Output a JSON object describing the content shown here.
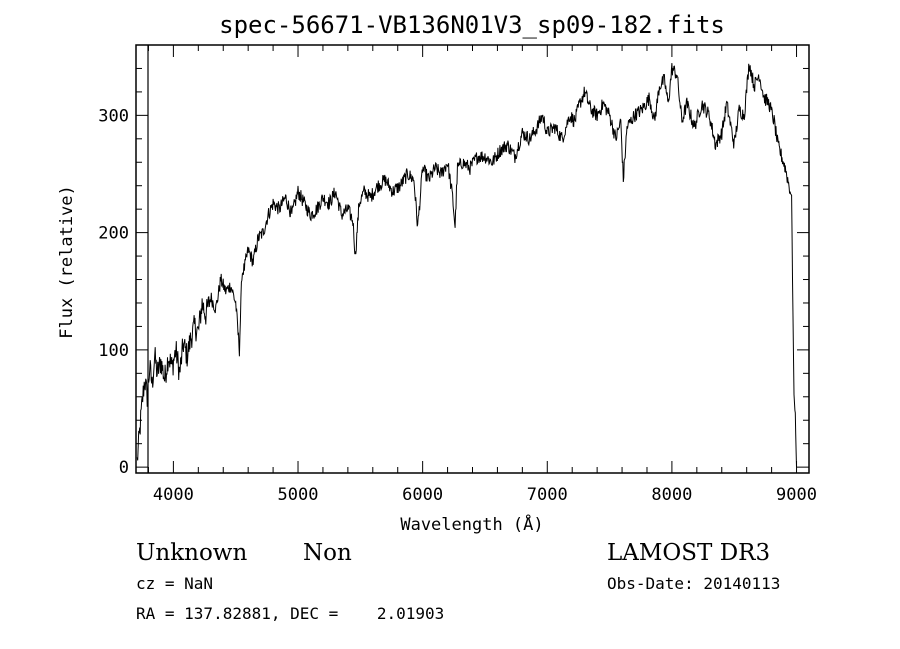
{
  "chart_data": {
    "type": "line",
    "title": "spec-56671-VB136N01V3_sp09-182.fits",
    "xlabel": "Wavelength (Å)",
    "ylabel": "Flux (relative)",
    "xlim": [
      3700,
      9100
    ],
    "ylim": [
      -5,
      360
    ],
    "xticks": [
      4000,
      5000,
      6000,
      7000,
      8000,
      9000
    ],
    "xtick_labels": [
      "4000",
      "5000",
      "6000",
      "7000",
      "8000",
      "9000"
    ],
    "yticks": [
      0,
      100,
      200,
      300
    ],
    "ytick_labels": [
      "0",
      "100",
      "200",
      "300"
    ],
    "grid": false,
    "series": [
      {
        "name": "flux",
        "x": [
          3710,
          3730,
          3750,
          3770,
          3790,
          3810,
          3830,
          3850,
          3870,
          3900,
          3930,
          3960,
          3990,
          4020,
          4050,
          4080,
          4110,
          4140,
          4170,
          4200,
          4230,
          4260,
          4300,
          4340,
          4380,
          4420,
          4460,
          4500,
          4530,
          4550,
          4570,
          4600,
          4640,
          4680,
          4720,
          4760,
          4800,
          4850,
          4900,
          4950,
          5000,
          5050,
          5100,
          5150,
          5200,
          5250,
          5300,
          5350,
          5400,
          5440,
          5460,
          5490,
          5530,
          5580,
          5640,
          5700,
          5760,
          5820,
          5880,
          5930,
          5960,
          6000,
          6050,
          6100,
          6150,
          6200,
          6240,
          6260,
          6280,
          6320,
          6380,
          6440,
          6500,
          6560,
          6620,
          6680,
          6740,
          6800,
          6860,
          6920,
          6960,
          7000,
          7060,
          7120,
          7180,
          7220,
          7260,
          7300,
          7350,
          7400,
          7450,
          7500,
          7550,
          7590,
          7610,
          7640,
          7700,
          7760,
          7820,
          7860,
          7900,
          7940,
          7970,
          8000,
          8040,
          8080,
          8120,
          8180,
          8240,
          8300,
          8350,
          8400,
          8440,
          8500,
          8540,
          8580,
          8620,
          8660,
          8700,
          8740,
          8780,
          8820,
          8850,
          8880,
          8910,
          8940,
          8960,
          8980,
          8990,
          9000
        ],
        "y": [
          5,
          30,
          55,
          75,
          60,
          85,
          70,
          95,
          80,
          90,
          75,
          95,
          85,
          100,
          80,
          105,
          95,
          110,
          120,
          115,
          140,
          130,
          145,
          135,
          160,
          150,
          155,
          140,
          100,
          165,
          170,
          185,
          175,
          195,
          200,
          215,
          225,
          220,
          230,
          215,
          235,
          225,
          215,
          220,
          230,
          225,
          235,
          215,
          220,
          210,
          180,
          225,
          235,
          230,
          240,
          245,
          235,
          240,
          250,
          245,
          205,
          255,
          245,
          255,
          250,
          260,
          230,
          205,
          255,
          260,
          255,
          265,
          265,
          260,
          270,
          275,
          265,
          285,
          280,
          290,
          300,
          285,
          290,
          280,
          300,
          295,
          310,
          320,
          305,
          300,
          310,
          300,
          280,
          295,
          245,
          290,
          300,
          305,
          315,
          295,
          325,
          330,
          310,
          340,
          335,
          295,
          310,
          290,
          310,
          300,
          275,
          285,
          310,
          275,
          305,
          300,
          345,
          325,
          335,
          315,
          310,
          295,
          275,
          265,
          255,
          240,
          230,
          60,
          45,
          0
        ]
      }
    ]
  },
  "footer": {
    "object_type": "Unknown",
    "object_subtype": "Non",
    "survey": "LAMOST DR3",
    "cz": "cz = NaN",
    "obs_date": "Obs-Date: 20140113",
    "coords": "RA = 137.82881, DEC =    2.01903"
  }
}
